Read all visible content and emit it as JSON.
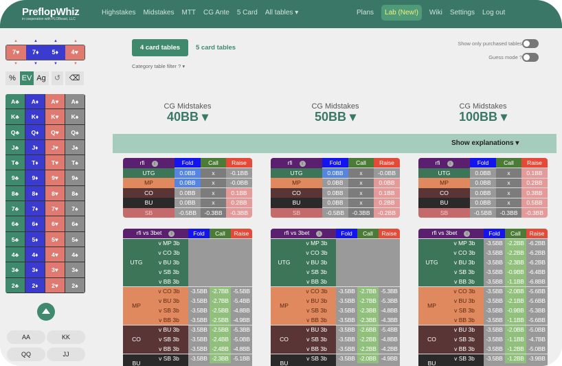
{
  "header": {
    "logo": "PreflopWhiz",
    "logo_sub": "in cooperation with PLOBeast, LLC",
    "nav_left": [
      "Highstakes",
      "Midstakes",
      "MTT",
      "CG Ante",
      "5 Card",
      "All tables ▾"
    ],
    "nav_right": [
      "Plans",
      "Lab (New!)",
      "Wiki",
      "Settings",
      "Log out"
    ]
  },
  "card_selector": [
    {
      "label": "7♥",
      "color": "#e07a70"
    },
    {
      "label": "7♦",
      "color": "#3b3bcf"
    },
    {
      "label": "5♦",
      "color": "#3b3bcf"
    },
    {
      "label": "4♥",
      "color": "#e07a70"
    }
  ],
  "toolbar": {
    "pct": "%",
    "ev": "EV",
    "ag": "Ag",
    "undo": "↺",
    "backspace": "⌫"
  },
  "card_grid": {
    "ranks": [
      "A",
      "K",
      "Q",
      "J",
      "T",
      "9",
      "8",
      "7",
      "6",
      "5",
      "4",
      "3",
      "2"
    ],
    "suits": [
      {
        "s": "♣",
        "color": "#3f8a6d"
      },
      {
        "s": "♦",
        "color": "#3b3bcf"
      },
      {
        "s": "♥",
        "color": "#e07a70"
      },
      {
        "s": "♠",
        "color": "#8c8c8c"
      }
    ]
  },
  "hand_chips": [
    "AA",
    "KK",
    "QQ",
    "JJ"
  ],
  "tabs": {
    "four": "4 card tables",
    "five": "5 card tables"
  },
  "filter": "Category table filter ? ▾",
  "toggles": {
    "purchased": "Show only purchased tables",
    "guess": "Guess mode ?"
  },
  "explanations": "Show explanations ▾",
  "colors": {
    "UTG": "#3d7558",
    "MP": "#e0885e",
    "CO": "#5a3535",
    "BU": "#2a2a2a",
    "SB": "#c46a6a",
    "blue": "#5585e0",
    "gray": "#999999",
    "dgray": "#7c7c7c",
    "pink": "#e49a98",
    "green": "#90c07c"
  },
  "rfi_header": [
    "rfi",
    "Fold",
    "Call",
    "Raise"
  ],
  "vs3_header": [
    "rfi vs 3bet",
    "Fold",
    "Call",
    "Raise"
  ],
  "columns": [
    {
      "title": "CG Midstakes",
      "stack": "40BB ▾",
      "rfi": [
        [
          "UTG",
          "0.0BB",
          "x",
          "-0.1BB",
          "blue",
          "dgray",
          "gray"
        ],
        [
          "MP",
          "0.0BB",
          "x",
          "-0.0BB",
          "blue",
          "dgray",
          "gray"
        ],
        [
          "CO",
          "0.0BB",
          "x",
          "0.1BB",
          "gray",
          "dgray",
          "pink"
        ],
        [
          "BU",
          "0.0BB",
          "x",
          "0.2BB",
          "gray",
          "dgray",
          "pink"
        ],
        [
          "SB",
          "-0.5BB",
          "-0.3BB",
          "-0.3BB",
          "gray",
          "dgray",
          "pink"
        ]
      ],
      "vs3": [
        {
          "pos": "UTG",
          "rows": [
            [
              "v MP 3b",
              "",
              "",
              ""
            ],
            [
              "v CO 3b",
              "",
              "",
              ""
            ],
            [
              "v BU 3b",
              "",
              "",
              ""
            ],
            [
              "v SB 3b",
              "",
              "",
              ""
            ],
            [
              "v BB 3b",
              "",
              "",
              ""
            ]
          ]
        },
        {
          "pos": "MP",
          "rows": [
            [
              "v CO 3b",
              "-3.5BB",
              "-2.7BB",
              "-5.5BB"
            ],
            [
              "v BU 3b",
              "-3.5BB",
              "-2.7BB",
              "-5.4BB"
            ],
            [
              "v SB 3b",
              "-3.5BB",
              "-2.5BB",
              "-4.8BB"
            ],
            [
              "v BB 3b",
              "-3.5BB",
              "-2.5BB",
              "-4.9BB"
            ]
          ]
        },
        {
          "pos": "CO",
          "rows": [
            [
              "v BU 3b",
              "-3.5BB",
              "-2.5BB",
              "-5.3BB"
            ],
            [
              "v SB 3b",
              "-3.5BB",
              "-2.4BB",
              "-5.0BB"
            ],
            [
              "v BB 3b",
              "-3.5BB",
              "-2.4BB",
              "-4.8BB"
            ]
          ]
        },
        {
          "pos": "BU",
          "rows": [
            [
              "v SB 3b",
              "-3.5BB",
              "-2.3BB",
              "-5.1BB"
            ],
            [
              "",
              "",
              "",
              ""
            ]
          ]
        }
      ]
    },
    {
      "title": "CG Midstakes",
      "stack": "50BB ▾",
      "rfi": [
        [
          "UTG",
          "0.0BB",
          "x",
          "-0.0BB",
          "blue",
          "dgray",
          "gray"
        ],
        [
          "MP",
          "0.0BB",
          "x",
          "0.0BB",
          "gray",
          "dgray",
          "pink"
        ],
        [
          "CO",
          "0.0BB",
          "x",
          "0.1BB",
          "gray",
          "dgray",
          "pink"
        ],
        [
          "BU",
          "0.0BB",
          "x",
          "0.2BB",
          "gray",
          "dgray",
          "pink"
        ],
        [
          "SB",
          "-0.5BB",
          "-0.3BB",
          "-0.2BB",
          "gray",
          "dgray",
          "pink"
        ]
      ],
      "vs3": [
        {
          "pos": "UTG",
          "rows": [
            [
              "v MP 3b",
              "",
              "",
              ""
            ],
            [
              "v CO 3b",
              "",
              "",
              ""
            ],
            [
              "v BU 3b",
              "",
              "",
              ""
            ],
            [
              "v SB 3b",
              "",
              "",
              ""
            ],
            [
              "v BB 3b",
              "",
              "",
              ""
            ]
          ]
        },
        {
          "pos": "MP",
          "rows": [
            [
              "v CO 3b",
              "-3.5BB",
              "-2.7BB",
              "-5.3BB"
            ],
            [
              "v BU 3b",
              "-3.5BB",
              "-2.7BB",
              "-5.3BB"
            ],
            [
              "v SB 3b",
              "-3.5BB",
              "-2.3BB",
              "-4.8BB"
            ],
            [
              "v BB 3b",
              "-3.5BB",
              "-2.3BB",
              "-4.3BB"
            ]
          ]
        },
        {
          "pos": "CO",
          "rows": [
            [
              "v BU 3b",
              "-3.5BB",
              "-2.6BB",
              "-5.4BB"
            ],
            [
              "v SB 3b",
              "-3.5BB",
              "-2.2BB",
              "-4.8BB"
            ],
            [
              "v BB 3b",
              "-3.5BB",
              "-2.2BB",
              "-4.2BB"
            ]
          ]
        },
        {
          "pos": "BU",
          "rows": [
            [
              "v SB 3b",
              "-3.5BB",
              "-2.0BB",
              "-4.9BB"
            ],
            [
              "",
              "",
              "",
              ""
            ]
          ]
        }
      ]
    },
    {
      "title": "CG Midstakes",
      "stack": "100BB ▾",
      "rfi": [
        [
          "UTG",
          "0.0BB",
          "x",
          "0.1BB",
          "gray",
          "dgray",
          "pink"
        ],
        [
          "MP",
          "0.0BB",
          "x",
          "0.2BB",
          "gray",
          "dgray",
          "pink"
        ],
        [
          "CO",
          "0.0BB",
          "x",
          "0.3BB",
          "gray",
          "dgray",
          "pink"
        ],
        [
          "BU",
          "0.0BB",
          "x",
          "0.5BB",
          "gray",
          "dgray",
          "pink"
        ],
        [
          "SB",
          "-0.5BB",
          "-0.3BB",
          "-0.3BB",
          "gray",
          "dgray",
          "pink"
        ]
      ],
      "vs3": [
        {
          "pos": "UTG",
          "rows": [
            [
              "v MP 3b",
              "-3.5BB",
              "-2.2BB",
              "-6.2BB"
            ],
            [
              "v CO 3b",
              "-3.5BB",
              "-2.2BB",
              "-6.2BB"
            ],
            [
              "v BU 3b",
              "-3.5BB",
              "-2.3BB",
              "-6.2BB"
            ],
            [
              "v SB 3b",
              "-3.5BB",
              "-0.9BB",
              "-6.4BB"
            ],
            [
              "v BB 3b",
              "-3.5BB",
              "-1.1BB",
              "-6.8BB"
            ]
          ]
        },
        {
          "pos": "MP",
          "rows": [
            [
              "v CO 3b",
              "-3.5BB",
              "-2.0BB",
              "-5.6BB"
            ],
            [
              "v BU 3b",
              "-3.5BB",
              "-2.1BB",
              "-5.6BB"
            ],
            [
              "v SB 3b",
              "-3.5BB",
              "-0.9BB",
              "-5.3BB"
            ],
            [
              "v BB 3b",
              "-3.5BB",
              "-1.1BB",
              "-5.6BB"
            ]
          ]
        },
        {
          "pos": "CO",
          "rows": [
            [
              "v BU 3b",
              "-3.5BB",
              "-2.0BB",
              "-5.0BB"
            ],
            [
              "v SB 3b",
              "-3.5BB",
              "-1.1BB",
              "-4.7BB"
            ],
            [
              "v BB 3b",
              "-3.5BB",
              "-1.2BB",
              "-5.0BB"
            ]
          ]
        },
        {
          "pos": "BU",
          "rows": [
            [
              "v SB 3b",
              "-3.5BB",
              "-1.2BB",
              "-3.9BB"
            ],
            [
              "",
              "",
              "",
              ""
            ]
          ]
        }
      ]
    }
  ]
}
